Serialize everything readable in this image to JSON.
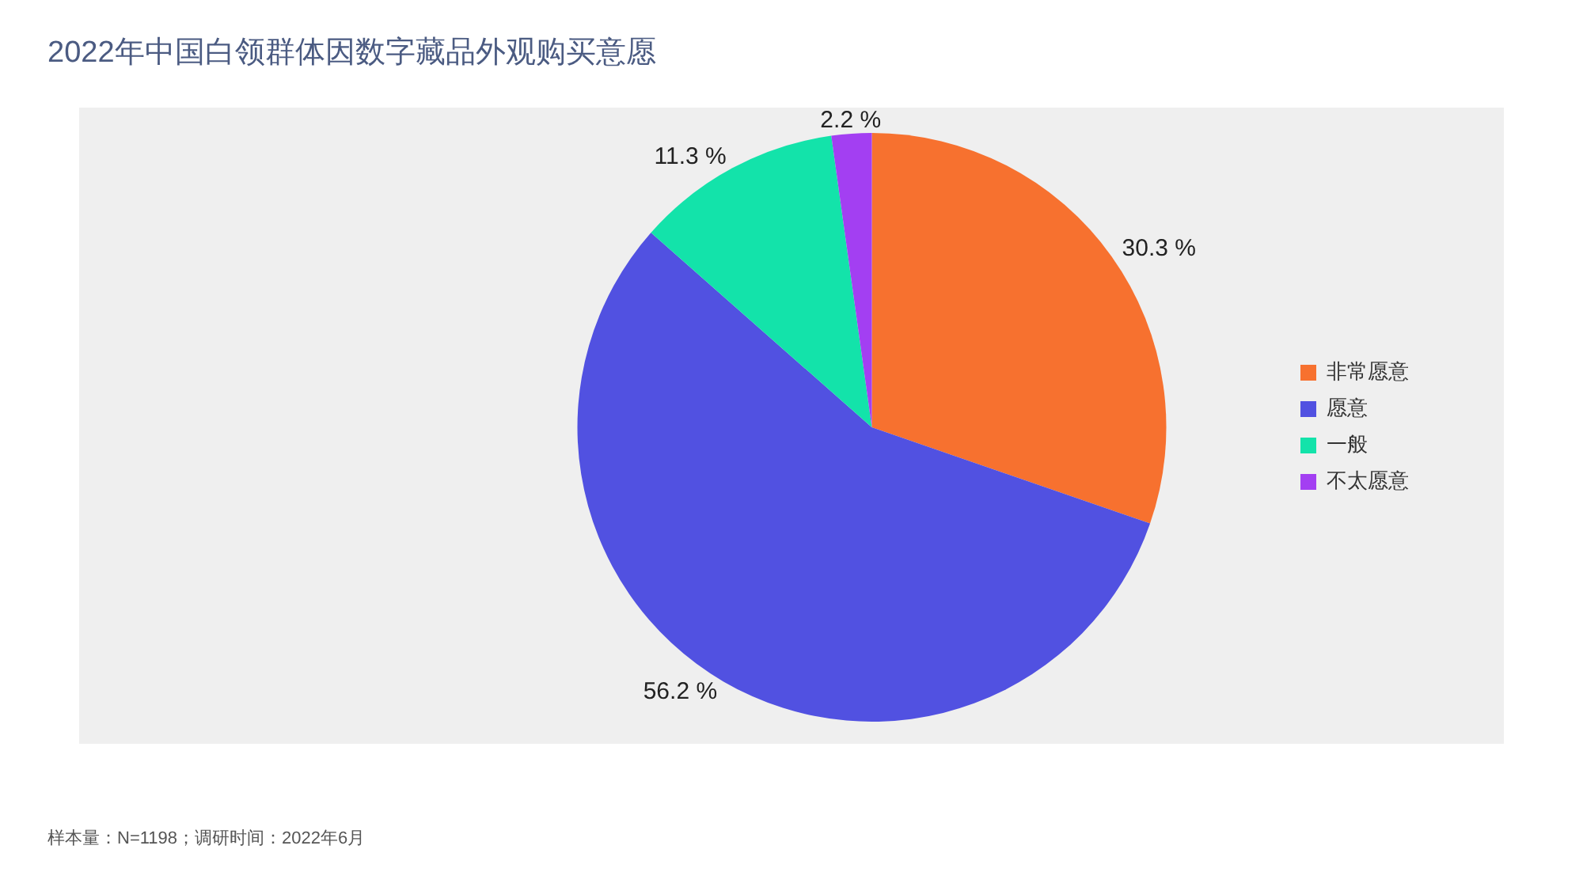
{
  "chart_data": {
    "type": "pie",
    "title": "2022年中国白领群体因数字藏品外观购买意愿",
    "categories": [
      "非常愿意",
      "愿意",
      "一般",
      "不太愿意"
    ],
    "values": [
      30.3,
      56.2,
      11.3,
      2.2
    ],
    "colors": [
      "#f7712f",
      "#5151e1",
      "#13e3aa",
      "#a33ff2"
    ],
    "value_labels": [
      "30.3 %",
      "56.2 %",
      "11.3 %",
      "2.2 %"
    ],
    "legend": "right",
    "annotations": [
      "样本量：N=1198；调研时间：2022年6月"
    ]
  }
}
